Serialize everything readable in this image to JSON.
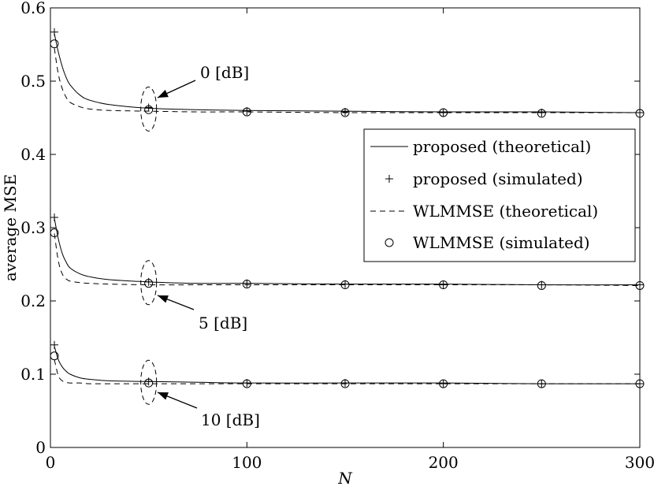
{
  "chart_data": {
    "type": "line",
    "title": "",
    "xlabel": "N",
    "ylabel": "average MSE",
    "xlim": [
      0,
      300
    ],
    "ylim": [
      0,
      0.6
    ],
    "xticks": [
      0,
      100,
      200,
      300
    ],
    "yticks": [
      0,
      0.1,
      0.2,
      0.3,
      0.4,
      0.5,
      0.6
    ],
    "xtick_labels": [
      "0",
      "100",
      "200",
      "300"
    ],
    "ytick_labels": [
      "0",
      "0.1",
      "0.2",
      "0.3",
      "0.4",
      "0.5",
      "0.6"
    ],
    "grid": false,
    "legend_position": "center-right",
    "legend": [
      {
        "label": "proposed (theoretical)",
        "style": "solid-line"
      },
      {
        "label": "proposed (simulated)",
        "style": "plus-marker"
      },
      {
        "label": "WLMMSE (theoretical)",
        "style": "dashed-line"
      },
      {
        "label": "WLMMSE (simulated)",
        "style": "circle-marker"
      }
    ],
    "groups": [
      {
        "snr_label": "0 [dB]",
        "proposed_theoretical": {
          "x": [
            2,
            4,
            6,
            8,
            10,
            15,
            20,
            30,
            50,
            75,
            100,
            150,
            200,
            250,
            300
          ],
          "y": [
            0.565,
            0.54,
            0.52,
            0.505,
            0.495,
            0.481,
            0.474,
            0.468,
            0.463,
            0.461,
            0.46,
            0.459,
            0.458,
            0.458,
            0.457
          ]
        },
        "proposed_simulated": {
          "x": [
            2,
            50,
            100,
            150,
            200,
            250,
            300
          ],
          "y": [
            0.567,
            0.464,
            0.459,
            0.458,
            0.457,
            0.457,
            0.457
          ]
        },
        "wlmmse_theoretical": {
          "x": [
            2,
            4,
            6,
            8,
            10,
            15,
            20,
            30,
            50,
            75,
            100,
            150,
            200,
            250,
            300
          ],
          "y": [
            0.545,
            0.51,
            0.49,
            0.478,
            0.471,
            0.465,
            0.462,
            0.46,
            0.459,
            0.458,
            0.458,
            0.457,
            0.457,
            0.457,
            0.457
          ]
        },
        "wlmmse_simulated": {
          "x": [
            2,
            50,
            100,
            150,
            200,
            250,
            300
          ],
          "y": [
            0.551,
            0.461,
            0.458,
            0.457,
            0.457,
            0.456,
            0.456
          ]
        }
      },
      {
        "snr_label": "5 [dB]",
        "proposed_theoretical": {
          "x": [
            2,
            4,
            6,
            8,
            10,
            15,
            20,
            30,
            50,
            75,
            100,
            150,
            200,
            250,
            300
          ],
          "y": [
            0.313,
            0.285,
            0.265,
            0.253,
            0.245,
            0.237,
            0.233,
            0.229,
            0.226,
            0.224,
            0.224,
            0.223,
            0.223,
            0.222,
            0.222
          ]
        },
        "proposed_simulated": {
          "x": [
            2,
            50,
            100,
            150,
            200,
            250,
            300
          ],
          "y": [
            0.314,
            0.226,
            0.224,
            0.223,
            0.222,
            0.222,
            0.222
          ]
        },
        "wlmmse_theoretical": {
          "x": [
            2,
            4,
            6,
            8,
            10,
            15,
            20,
            30,
            50,
            75,
            100,
            150,
            200,
            250,
            300
          ],
          "y": [
            0.292,
            0.255,
            0.237,
            0.23,
            0.227,
            0.225,
            0.224,
            0.223,
            0.222,
            0.222,
            0.222,
            0.222,
            0.222,
            0.222,
            0.221
          ]
        },
        "wlmmse_simulated": {
          "x": [
            2,
            50,
            100,
            150,
            200,
            250,
            300
          ],
          "y": [
            0.293,
            0.224,
            0.223,
            0.222,
            0.222,
            0.221,
            0.221
          ]
        }
      },
      {
        "snr_label": "10 [dB]",
        "proposed_theoretical": {
          "x": [
            2,
            4,
            6,
            8,
            10,
            15,
            20,
            30,
            50,
            75,
            100,
            150,
            200,
            250,
            300
          ],
          "y": [
            0.138,
            0.12,
            0.11,
            0.104,
            0.1,
            0.095,
            0.093,
            0.091,
            0.09,
            0.089,
            0.088,
            0.088,
            0.088,
            0.087,
            0.087
          ]
        },
        "proposed_simulated": {
          "x": [
            2,
            50,
            100,
            150,
            200,
            250,
            300
          ],
          "y": [
            0.14,
            0.09,
            0.088,
            0.088,
            0.087,
            0.087,
            0.087
          ]
        },
        "wlmmse_theoretical": {
          "x": [
            2,
            4,
            6,
            8,
            10,
            15,
            20,
            30,
            50,
            75,
            100,
            150,
            200,
            250,
            300
          ],
          "y": [
            0.12,
            0.098,
            0.091,
            0.089,
            0.088,
            0.088,
            0.087,
            0.087,
            0.087,
            0.087,
            0.087,
            0.087,
            0.087,
            0.087,
            0.087
          ]
        },
        "wlmmse_simulated": {
          "x": [
            2,
            50,
            100,
            150,
            200,
            250,
            300
          ],
          "y": [
            0.125,
            0.088,
            0.087,
            0.087,
            0.087,
            0.087,
            0.087
          ]
        }
      }
    ]
  }
}
